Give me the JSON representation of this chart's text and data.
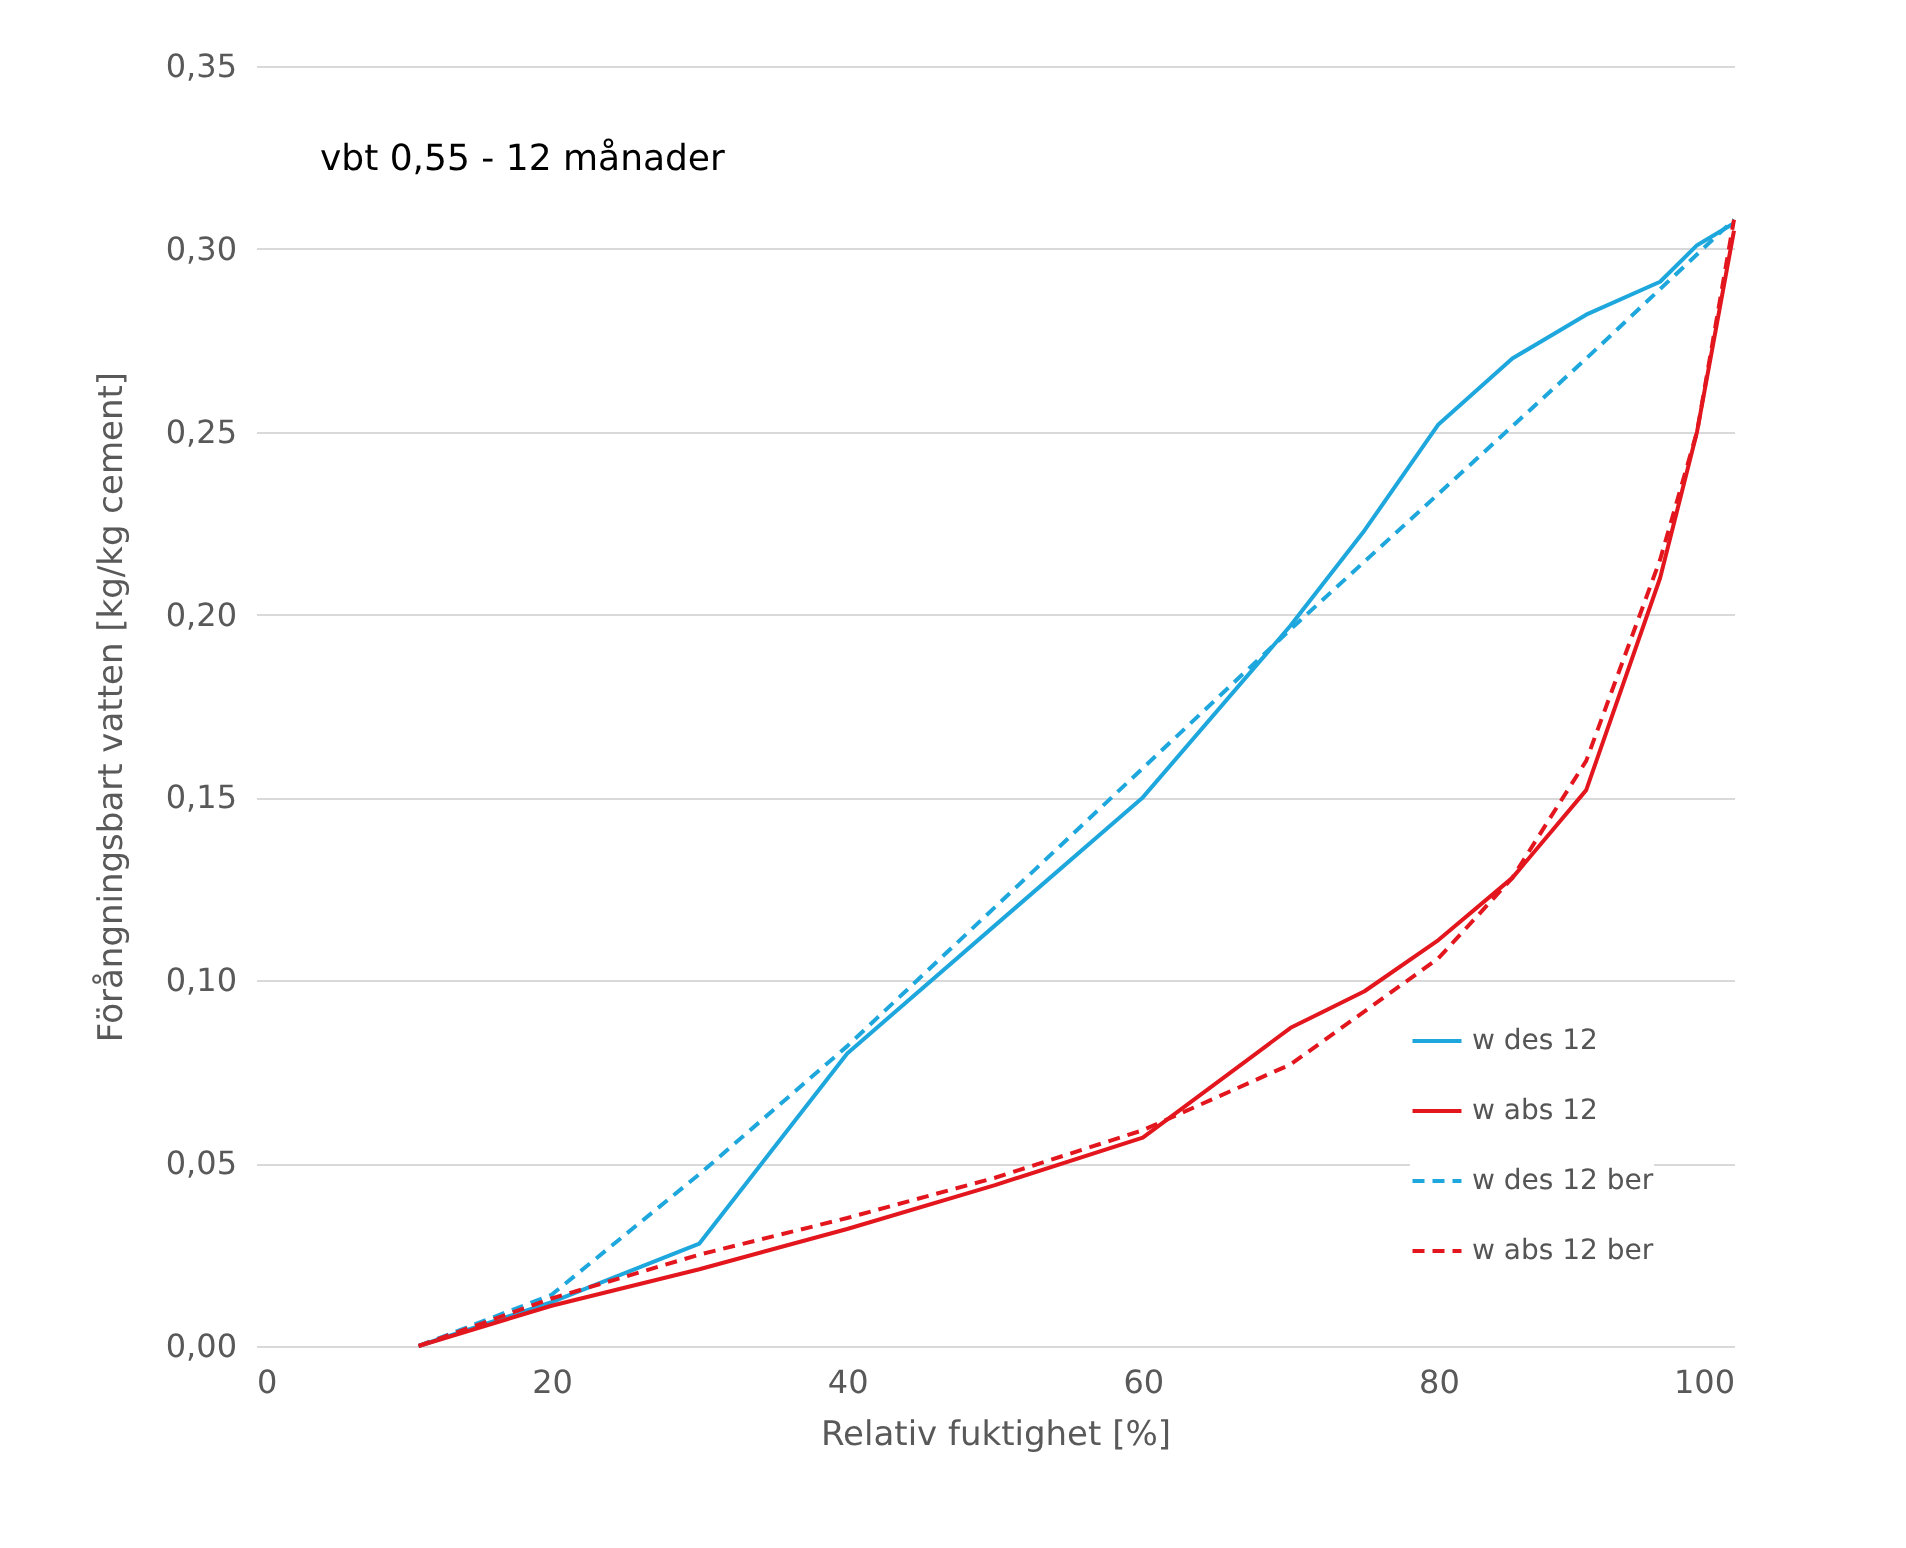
{
  "chart_data": {
    "type": "line",
    "xlabel": "Relativ fuktighet [%]",
    "ylabel": "Förångningsbart  vatten [kg/kg cement]",
    "annotations": [
      "vbt 0,55 - 12 månader"
    ],
    "xlim": [
      0,
      100
    ],
    "xticks": [
      0,
      20,
      40,
      60,
      80,
      100
    ],
    "ylim": [
      0,
      0.35
    ],
    "yticks": [
      {
        "value": 0,
        "label": "0,00"
      },
      {
        "value": 0.05,
        "label": "0,05"
      },
      {
        "value": 0.1,
        "label": "0,10"
      },
      {
        "value": 0.15,
        "label": "0,15"
      },
      {
        "value": 0.2,
        "label": "0,20"
      },
      {
        "value": 0.25,
        "label": "0,25"
      },
      {
        "value": 0.3,
        "label": "0,30"
      },
      {
        "value": 0.35,
        "label": "0,35"
      }
    ],
    "grid": "y",
    "legend": "bottom right",
    "marker": "none",
    "series": [
      {
        "name": "w des 12",
        "color": "#1ea7dd",
        "line_style": "solid",
        "x": [
          11,
          20,
          30,
          40,
          60,
          70,
          75,
          80,
          85,
          90,
          95,
          97.5,
          100
        ],
        "values": [
          0,
          0.012,
          0.028,
          0.08,
          0.15,
          0.197,
          0.223,
          0.252,
          0.27,
          0.282,
          0.291,
          0.301,
          0.307
        ]
      },
      {
        "name": "w abs 12",
        "color": "#e3161e",
        "line_style": "solid",
        "x": [
          11,
          20,
          30,
          40,
          50,
          60,
          70,
          75,
          80,
          85,
          90,
          95,
          97.5,
          100
        ],
        "values": [
          0,
          0.011,
          0.021,
          0.032,
          0.044,
          0.057,
          0.087,
          0.097,
          0.111,
          0.128,
          0.152,
          0.21,
          0.25,
          0.305
        ]
      },
      {
        "name": "w des 12 ber",
        "color": "#1ea7dd",
        "line_style": "dashed",
        "x": [
          11,
          20,
          30,
          40,
          50,
          60,
          70,
          80,
          90,
          100
        ],
        "values": [
          0,
          0.014,
          0.047,
          0.082,
          0.12,
          0.158,
          0.196,
          0.233,
          0.27,
          0.308
        ]
      },
      {
        "name": "w abs 12 ber",
        "color": "#e3161e",
        "line_style": "dashed",
        "x": [
          11,
          20,
          30,
          40,
          50,
          60,
          70,
          80,
          85,
          90,
          95,
          97.5,
          100
        ],
        "values": [
          0,
          0.013,
          0.025,
          0.035,
          0.046,
          0.059,
          0.077,
          0.106,
          0.128,
          0.16,
          0.215,
          0.25,
          0.308
        ]
      }
    ]
  }
}
